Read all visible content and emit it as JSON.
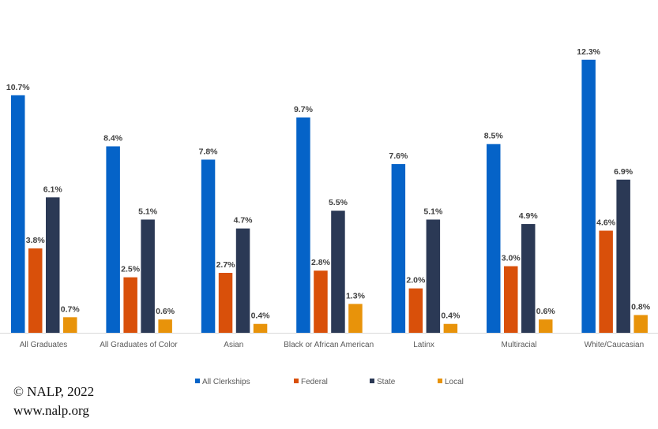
{
  "chart_data": {
    "type": "bar",
    "title": "",
    "xlabel": "",
    "ylabel": "",
    "ylim": [
      0,
      12.3
    ],
    "grid": false,
    "legend_position": "bottom",
    "categories": [
      "All Graduates",
      "All Graduates of Color",
      "Asian",
      "Black or African American",
      "Latinx",
      "Multiracial",
      "White/Caucasian"
    ],
    "series": [
      {
        "name": "All Clerkships",
        "color": "#0563C8",
        "values": [
          10.7,
          8.4,
          7.8,
          9.7,
          7.6,
          8.5,
          12.3
        ]
      },
      {
        "name": "Federal",
        "color": "#D9500A",
        "values": [
          3.8,
          2.5,
          2.7,
          2.8,
          2.0,
          3.0,
          4.6
        ]
      },
      {
        "name": "State",
        "color": "#2B3955",
        "values": [
          6.1,
          5.1,
          4.7,
          5.5,
          5.1,
          4.9,
          6.9
        ]
      },
      {
        "name": "Local",
        "color": "#E8930A",
        "values": [
          0.7,
          0.6,
          0.4,
          1.3,
          0.4,
          0.6,
          0.8
        ]
      }
    ],
    "value_suffix": "%"
  },
  "footer": {
    "copyright": "© NALP, 2022",
    "url": "www.nalp.org"
  }
}
